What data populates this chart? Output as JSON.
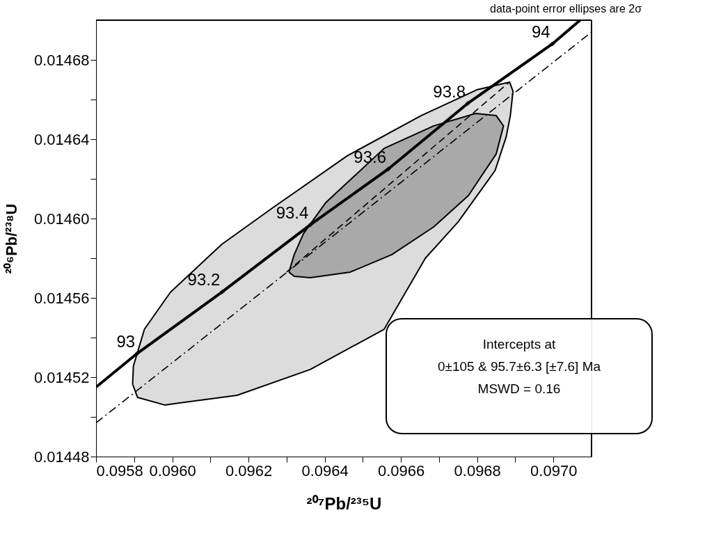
{
  "chart_data": {
    "type": "line",
    "xlabel": "²⁰⁷Pb/²³⁵U",
    "ylabel": "²⁰⁶Pb/²³⁸U",
    "xlim": [
      0.0958,
      0.0971
    ],
    "ylim": [
      0.01448,
      0.0147
    ],
    "xticks": [
      0.0958,
      {
        "value": 0.0959,
        "label": null
      },
      {
        "value": 0.096,
        "label": "0.0960"
      },
      {
        "value": 0.0961,
        "label": null
      },
      0.0962,
      {
        "value": 0.0963,
        "label": null
      },
      0.0964,
      {
        "value": 0.0965,
        "label": null
      },
      0.0966,
      {
        "value": 0.0967,
        "label": null
      },
      0.0968,
      {
        "value": 0.0969,
        "label": null
      },
      {
        "value": 0.097,
        "label": "0.0970"
      }
    ],
    "yticks": [
      0.01448,
      {
        "value": 0.0145,
        "label": null
      },
      0.01452,
      {
        "value": 0.01454,
        "label": null
      },
      0.01456,
      {
        "value": 0.01458,
        "label": null
      },
      {
        "value": 0.0146,
        "label": "0.01460"
      },
      {
        "value": 0.01462,
        "label": null
      },
      0.01464,
      {
        "value": 0.01466,
        "label": null
      },
      0.01468
    ],
    "grid": false,
    "series": [
      {
        "type": "area",
        "color": "#dcdcdc",
        "x": [
          0.095896,
          0.095898,
          0.095927,
          0.095995,
          0.09613,
          0.096265,
          0.096459,
          0.096653,
          0.096799,
          0.096885,
          0.096894,
          0.096887,
          0.096876,
          0.096847,
          0.09675,
          0.096664,
          0.096556,
          0.096362,
          0.09617,
          0.09598,
          0.095909,
          0.095896
        ],
        "values": [
          0.0145165,
          0.0145256,
          0.0145442,
          0.0145628,
          0.014587,
          0.0146056,
          0.0146316,
          0.0146519,
          0.0146649,
          0.0146688,
          0.0146642,
          0.0146519,
          0.0146411,
          0.0146242,
          0.0145983,
          0.01458,
          0.0145442,
          0.0145239,
          0.0145109,
          0.014506,
          0.0145098,
          0.0145165
        ]
      },
      {
        "type": "area",
        "color": "#a9a9a9",
        "x": [
          0.096306,
          0.09632,
          0.096344,
          0.096403,
          0.096556,
          0.096686,
          0.096796,
          0.09685,
          0.096869,
          0.09685,
          0.096777,
          0.096686,
          0.096576,
          0.096467,
          0.096362,
          0.09632,
          0.096306
        ],
        "values": [
          0.014573,
          0.0145818,
          0.0145923,
          0.0146081,
          0.0146354,
          0.0146467,
          0.014653,
          0.0146519,
          0.0146467,
          0.0146326,
          0.0146116,
          0.0145958,
          0.0145818,
          0.014573,
          0.0145702,
          0.0145709,
          0.014573
        ]
      },
      {
        "color": "#000000",
        "line_style": "dashdot",
        "x": [
          0.0958,
          0.0971
        ],
        "values": [
          0.014497,
          0.014694
        ]
      },
      {
        "color": "#000000",
        "line_style": "dashed",
        "x": [
          0.0963,
          0.096886
        ],
        "values": [
          0.014573,
          0.014669
        ]
      },
      {
        "color": "#000000",
        "line_style": "solid",
        "x": [
          0.0958,
          0.095908,
          0.096131,
          0.096363,
          0.096567,
          0.096775,
          0.096997,
          0.09707
        ],
        "values": [
          0.014515,
          0.014532,
          0.014563,
          0.014597,
          0.014625,
          0.014658,
          0.014688,
          0.0147
        ]
      },
      {
        "type": "scatter",
        "color": "#000000",
        "marker": "cross",
        "x": [
          0.095908,
          0.096131,
          0.096363,
          0.096567,
          0.096775,
          0.096997
        ],
        "values": [
          0.014532,
          0.014563,
          0.014597,
          0.014625,
          0.014658,
          0.014688
        ]
      }
    ],
    "annotations": [
      "data-point error ellipses are 2σ",
      "Intercepts at",
      "0±105 & 95.7±6.3   [±7.6]  Ma",
      "MSWD = 0.16",
      {
        "text": "93",
        "x": 0.095908,
        "y": 0.014532
      },
      {
        "text": "93.2",
        "x": 0.096131,
        "y": 0.014563
      },
      {
        "text": "93.4",
        "x": 0.096363,
        "y": 0.014597
      },
      {
        "text": "93.6",
        "x": 0.096567,
        "y": 0.014625
      },
      {
        "text": "93.8",
        "x": 0.096775,
        "y": 0.014658
      },
      {
        "text": "94",
        "x": 0.096997,
        "y": 0.014688
      }
    ]
  }
}
